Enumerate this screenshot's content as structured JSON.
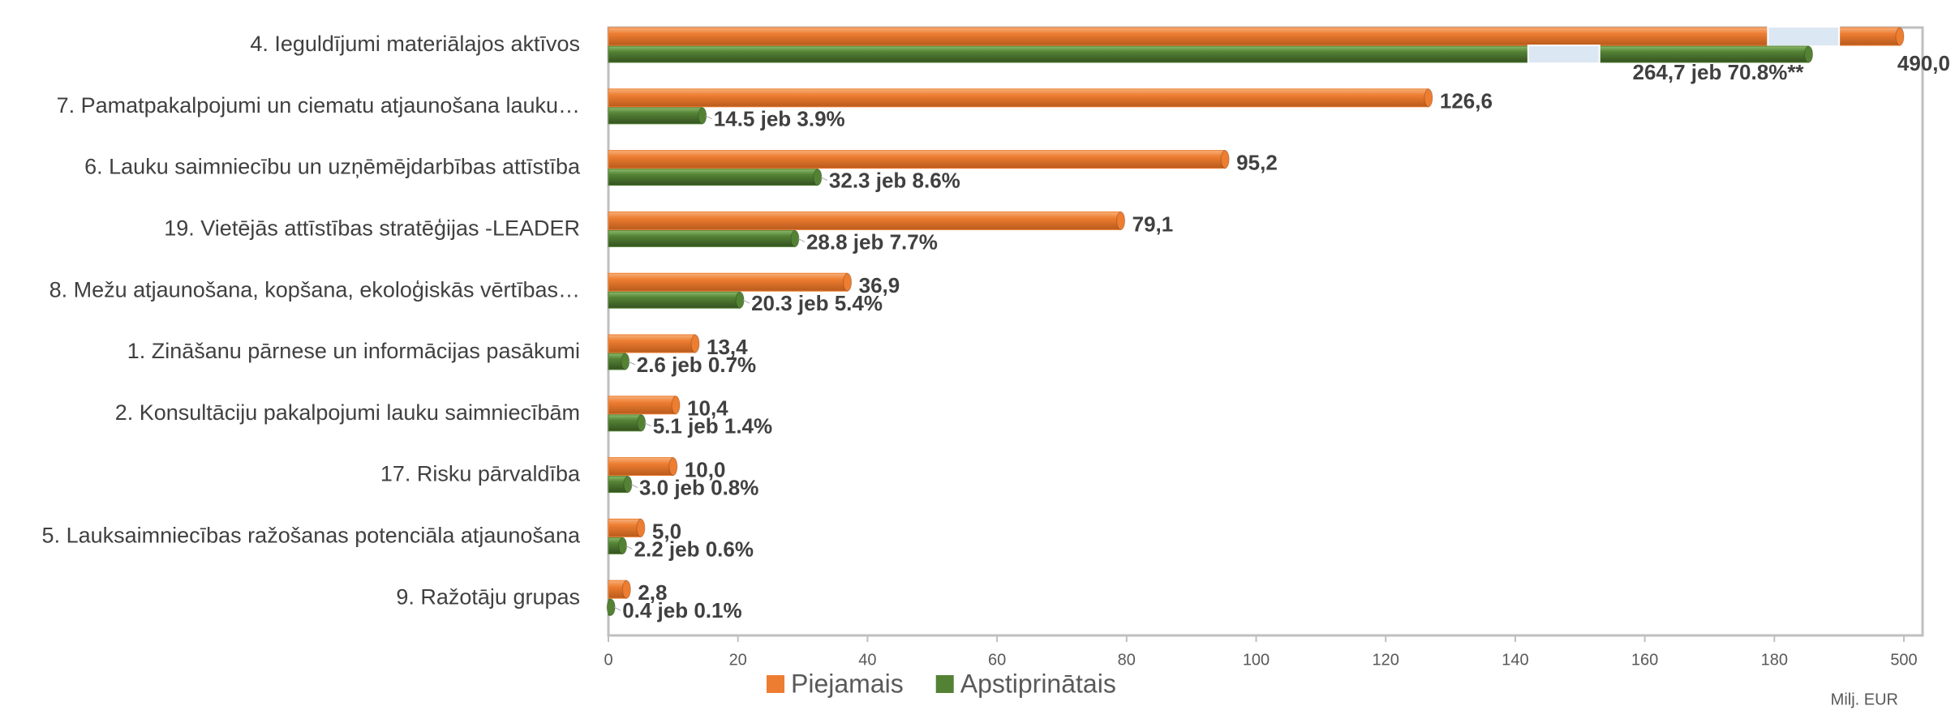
{
  "chart_data": {
    "type": "bar",
    "orientation": "horizontal",
    "categories": [
      "4. Ieguldījumi materiālajos aktīvos",
      "7. Pamatpakalpojumi un ciematu atjaunošana lauku…",
      "6. Lauku saimniecību un uzņēmējdarbības attīstība",
      "19. Vietējās attīstības stratēģijas -LEADER",
      "8. Mežu atjaunošana, kopšana,  ekoloģiskās vērtības…",
      "1. Zināšanu pārnese un informācijas pasākumi",
      "2. Konsultāciju pakalpojumi lauku saimniecībām",
      "17. Risku pārvaldība",
      "5. Lauksaimniecības ražošanas potenciāla atjaunošana",
      "9. Ražotāju grupas"
    ],
    "series": [
      {
        "name": "Piejamais",
        "color": "#ed7d31",
        "values": [
          490.0,
          126.6,
          95.2,
          79.1,
          36.9,
          13.4,
          10.4,
          10.0,
          5.0,
          2.8
        ],
        "value_labels": [
          "490,0",
          "126,6",
          "95,2",
          "79,1",
          "36,9",
          "13,4",
          "10,4",
          "10,0",
          "5,0",
          "2,8"
        ]
      },
      {
        "name": "Apstiprinātais",
        "color": "#548235",
        "values": [
          264.7,
          14.5,
          32.3,
          28.8,
          20.3,
          2.6,
          5.1,
          3.0,
          2.2,
          0.4
        ],
        "value_labels": [
          "264,7 jeb 70.8%**",
          "14.5 jeb 3.9%",
          "32.3 jeb 8.6%",
          "28.8 jeb 7.7%",
          "20.3 jeb 5.4%",
          "2.6 jeb 0.7%",
          "5.1 jeb 1.4%",
          "3.0 jeb 0.8%",
          "2.2 jeb 0.6%",
          "0.4 jeb 0.1%"
        ]
      }
    ],
    "x_label": "Milj. EUR",
    "xlim": [
      0,
      500
    ],
    "xticks": [
      0,
      20,
      40,
      60,
      80,
      100,
      120,
      140,
      160,
      180,
      500
    ],
    "legend": "bottom"
  }
}
